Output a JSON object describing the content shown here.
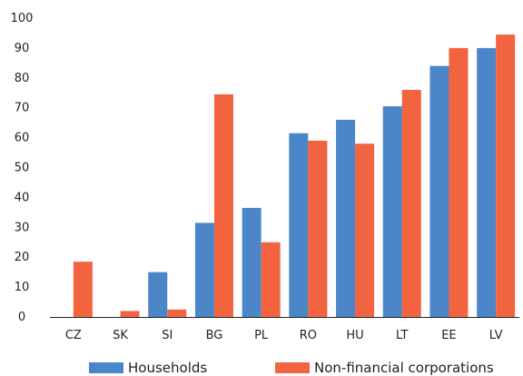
{
  "chart_data": {
    "type": "bar",
    "title": "",
    "xlabel": "",
    "ylabel": "",
    "ylim": [
      0,
      100
    ],
    "yticks": [
      "0",
      "10",
      "20",
      "30",
      "40",
      "50",
      "60",
      "70",
      "80",
      "90",
      "100"
    ],
    "grid": false,
    "legend_position": "bottom",
    "categories": [
      "CZ",
      "SK",
      "SI",
      "BG",
      "PL",
      "RO",
      "HU",
      "LT",
      "EE",
      "LV"
    ],
    "series": [
      {
        "name": "Households",
        "color": "#4a86c8",
        "values": [
          0,
          0,
          15,
          31.5,
          36.5,
          61.5,
          66,
          70.5,
          84,
          90
        ]
      },
      {
        "name": "Non-financial corporations",
        "color": "#f26440",
        "values": [
          18.5,
          2,
          2.5,
          74.5,
          25,
          59,
          58,
          76,
          90,
          94.5
        ]
      }
    ]
  }
}
